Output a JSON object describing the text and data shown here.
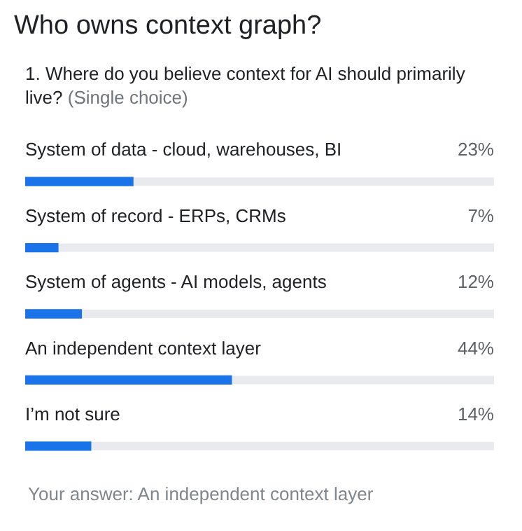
{
  "chart_data": {
    "type": "bar",
    "orientation": "horizontal",
    "title": "Who owns context graph?",
    "subtitle": "1. Where do you believe context for AI should primarily live? (Single choice)",
    "categories": [
      "System of data - cloud, warehouses, BI",
      "System of record - ERPs, CRMs",
      "System of agents - AI models, agents",
      "An independent context layer",
      "I’m not sure"
    ],
    "values": [
      23,
      7,
      12,
      44,
      14
    ],
    "color": "#1a73e8",
    "value_labels": [
      "23%",
      "7%",
      "12%",
      "44%",
      "14%"
    ],
    "xlim": [
      0,
      100
    ],
    "tick_labels": false,
    "annotations": [
      "Your answer: An independent context layer"
    ]
  }
}
